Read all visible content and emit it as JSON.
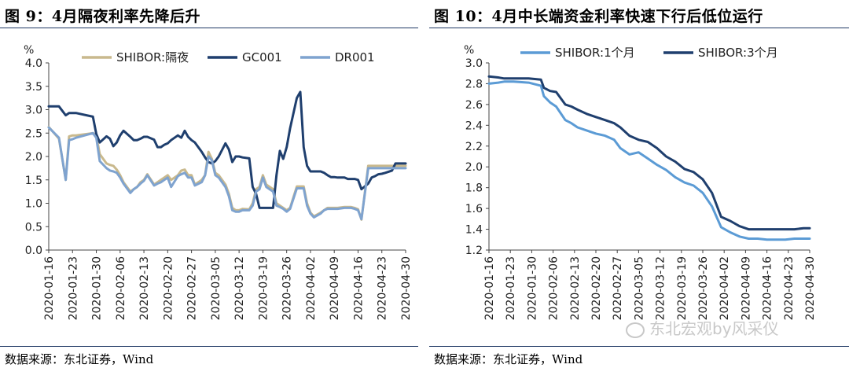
{
  "figures": [
    {
      "title": "图 9：4月隔夜利率先降后升",
      "source": "数据来源：东北证券，Wind",
      "chart_data": {
        "type": "line",
        "ylabel": "%",
        "ylim": [
          0,
          4.0
        ],
        "yticks": [
          "0.0",
          "0.5",
          "1.0",
          "1.5",
          "2.0",
          "2.5",
          "3.0",
          "3.5",
          "4.0"
        ],
        "x_tick_labels": [
          "2020-01-16",
          "2020-01-23",
          "2020-01-30",
          "2020-02-06",
          "2020-02-13",
          "2020-02-20",
          "2020-02-27",
          "2020-03-05",
          "2020-03-12",
          "2020-03-19",
          "2020-03-26",
          "2020-04-02",
          "2020-04-09",
          "2020-04-16",
          "2020-04-23",
          "2020-04-30"
        ],
        "x_range_days": [
          0,
          105
        ],
        "x_days": [
          0,
          3,
          5,
          6,
          7,
          8,
          13,
          14,
          15,
          17,
          18,
          19,
          20,
          21,
          22,
          24,
          25,
          26,
          27,
          28,
          29,
          31,
          32,
          33,
          34,
          35,
          36,
          38,
          39,
          40,
          41,
          42,
          43,
          45,
          46,
          47,
          48,
          49,
          50,
          52,
          53,
          54,
          55,
          56,
          57,
          59,
          60,
          61,
          62,
          63,
          64,
          66,
          67,
          68,
          69,
          70,
          71,
          73,
          74,
          75,
          76,
          77,
          78,
          80,
          81,
          82,
          83,
          84,
          85,
          87,
          88,
          89,
          90,
          91,
          92,
          94,
          95,
          96,
          97,
          98,
          99,
          101,
          102,
          103,
          104,
          105
        ],
        "series": [
          {
            "name": "SHIBOR:隔夜",
            "color": "#c9b98d",
            "values": [
              2.63,
              2.38,
              1.5,
              2.43,
              2.45,
              2.45,
              2.5,
              2.45,
              2.05,
              1.85,
              1.82,
              1.8,
              1.72,
              1.6,
              1.45,
              1.25,
              1.3,
              1.35,
              1.45,
              1.5,
              1.62,
              1.4,
              1.45,
              1.5,
              1.55,
              1.6,
              1.5,
              1.6,
              1.7,
              1.72,
              1.6,
              1.6,
              1.4,
              1.5,
              1.6,
              2.1,
              1.95,
              1.65,
              1.6,
              1.4,
              1.2,
              0.9,
              0.85,
              0.85,
              0.88,
              0.87,
              1.0,
              1.3,
              1.35,
              1.6,
              1.4,
              1.3,
              1.0,
              0.95,
              0.9,
              0.85,
              0.9,
              1.36,
              1.36,
              1.36,
              1.0,
              0.8,
              0.72,
              0.8,
              0.85,
              0.9,
              0.9,
              0.9,
              0.9,
              0.92,
              0.92,
              0.92,
              0.9,
              0.87,
              0.65,
              1.8,
              1.8,
              1.8,
              1.8,
              1.8,
              1.8,
              1.8,
              1.8,
              1.8,
              1.8,
              1.8
            ]
          },
          {
            "name": "GC001",
            "color": "#1f3f6e",
            "values": [
              3.07,
              3.07,
              2.88,
              2.93,
              2.93,
              2.93,
              2.85,
              2.48,
              2.3,
              2.43,
              2.38,
              2.22,
              2.3,
              2.45,
              2.55,
              2.42,
              2.35,
              2.35,
              2.38,
              2.42,
              2.42,
              2.36,
              2.2,
              2.2,
              2.25,
              2.28,
              2.35,
              2.45,
              2.4,
              2.55,
              2.42,
              2.35,
              2.3,
              2.1,
              1.98,
              1.88,
              1.85,
              1.9,
              2.0,
              2.28,
              2.15,
              1.88,
              2.0,
              2.0,
              1.98,
              1.96,
              1.35,
              1.2,
              0.9,
              0.9,
              0.9,
              0.9,
              1.6,
              2.12,
              1.95,
              2.2,
              2.6,
              3.25,
              3.38,
              2.2,
              1.8,
              1.68,
              1.68,
              1.68,
              1.65,
              1.6,
              1.56,
              1.56,
              1.55,
              1.55,
              1.52,
              1.52,
              1.52,
              1.5,
              1.3,
              1.42,
              1.55,
              1.58,
              1.62,
              1.63,
              1.65,
              1.7,
              1.85,
              1.85,
              1.85,
              1.85
            ]
          },
          {
            "name": "DR001",
            "color": "#7fa3cf",
            "values": [
              2.62,
              2.4,
              1.5,
              2.35,
              2.37,
              2.4,
              2.5,
              2.4,
              1.9,
              1.75,
              1.7,
              1.68,
              1.65,
              1.55,
              1.42,
              1.22,
              1.3,
              1.35,
              1.42,
              1.48,
              1.6,
              1.38,
              1.42,
              1.45,
              1.5,
              1.55,
              1.35,
              1.58,
              1.62,
              1.65,
              1.55,
              1.55,
              1.38,
              1.45,
              1.6,
              2.0,
              1.92,
              1.6,
              1.55,
              1.35,
              1.15,
              0.85,
              0.82,
              0.82,
              0.85,
              0.85,
              0.95,
              1.25,
              1.3,
              1.55,
              1.35,
              1.25,
              0.95,
              0.92,
              0.88,
              0.82,
              0.88,
              1.32,
              1.32,
              1.32,
              0.95,
              0.78,
              0.7,
              0.78,
              0.85,
              0.88,
              0.88,
              0.88,
              0.88,
              0.9,
              0.9,
              0.9,
              0.88,
              0.85,
              0.66,
              1.75,
              1.75,
              1.75,
              1.75,
              1.75,
              1.75,
              1.75,
              1.75,
              1.75,
              1.75,
              1.75
            ]
          }
        ]
      }
    },
    {
      "title": "图 10：4月中长端资金利率快速下行后低位运行",
      "source": "数据来源：东北证券，Wind",
      "chart_data": {
        "type": "line",
        "ylabel": "%",
        "ylim": [
          1.2,
          3.0
        ],
        "yticks": [
          "1.2",
          "1.4",
          "1.6",
          "1.8",
          "2.0",
          "2.2",
          "2.4",
          "2.6",
          "2.8",
          "3.0"
        ],
        "x_tick_labels": [
          "2020-01-16",
          "2020-01-23",
          "2020-01-30",
          "2020-02-06",
          "2020-02-13",
          "2020-02-20",
          "2020-02-27",
          "2020-03-05",
          "2020-03-12",
          "2020-03-19",
          "2020-03-26",
          "2020-04-02",
          "2020-04-09",
          "2020-04-16",
          "2020-04-23",
          "2020-04-30"
        ],
        "x_range_days": [
          0,
          105
        ],
        "x_days": [
          0,
          3,
          5,
          8,
          13,
          17,
          18,
          20,
          22,
          25,
          27,
          29,
          32,
          35,
          38,
          41,
          43,
          46,
          49,
          52,
          55,
          58,
          61,
          64,
          67,
          70,
          73,
          76,
          79,
          82,
          85,
          88,
          91,
          94,
          97,
          100,
          103,
          105
        ],
        "series": [
          {
            "name": "SHIBOR:1个月",
            "color": "#5b9bd5",
            "values": [
              2.8,
              2.81,
              2.82,
              2.82,
              2.81,
              2.78,
              2.68,
              2.62,
              2.58,
              2.45,
              2.42,
              2.38,
              2.35,
              2.32,
              2.3,
              2.26,
              2.18,
              2.12,
              2.14,
              2.08,
              2.02,
              1.97,
              1.9,
              1.85,
              1.82,
              1.75,
              1.62,
              1.42,
              1.37,
              1.33,
              1.31,
              1.31,
              1.3,
              1.3,
              1.3,
              1.31,
              1.31,
              1.31
            ]
          },
          {
            "name": "SHIBOR:3个月",
            "color": "#1f3f6e",
            "values": [
              2.87,
              2.86,
              2.85,
              2.85,
              2.85,
              2.84,
              2.76,
              2.73,
              2.72,
              2.6,
              2.58,
              2.55,
              2.51,
              2.48,
              2.45,
              2.42,
              2.38,
              2.3,
              2.26,
              2.24,
              2.18,
              2.1,
              2.05,
              1.98,
              1.95,
              1.88,
              1.75,
              1.52,
              1.48,
              1.43,
              1.4,
              1.4,
              1.4,
              1.4,
              1.4,
              1.4,
              1.41,
              1.41
            ]
          }
        ]
      }
    }
  ],
  "watermark": "东北宏观by风采仪"
}
